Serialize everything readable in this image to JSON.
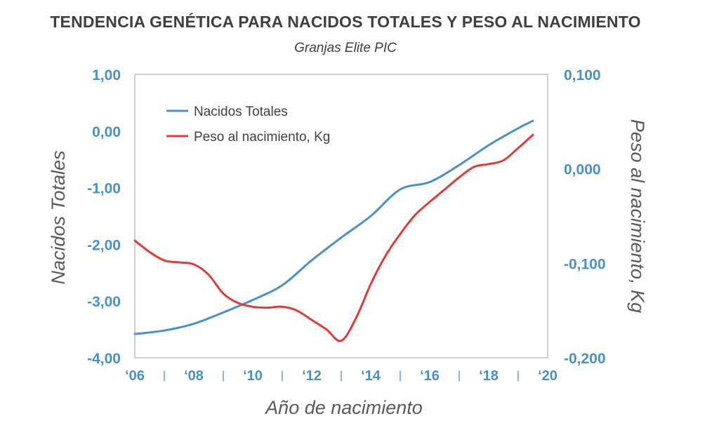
{
  "title": "TENDENCIA GENÉTICA PARA NACIDOS TOTALES Y PESO AL NACIMIENTO",
  "subtitle": "Granjas Elite PIC",
  "chart_data": {
    "type": "line",
    "xlabel": "Año de nacimiento",
    "ylabel_left": "Nacidos Totales",
    "ylabel_right": "Peso al nacimiento, Kg",
    "xlim": [
      2006,
      2020
    ],
    "x_ticks": [
      {
        "value": 2006,
        "label": "‘06"
      },
      {
        "value": 2008,
        "label": "‘08"
      },
      {
        "value": 2010,
        "label": "‘10"
      },
      {
        "value": 2012,
        "label": "‘12"
      },
      {
        "value": 2014,
        "label": "‘14"
      },
      {
        "value": 2016,
        "label": "‘16"
      },
      {
        "value": 2018,
        "label": "‘18"
      },
      {
        "value": 2020,
        "label": "‘20"
      }
    ],
    "x_separator": "|",
    "ylim_left": [
      -4,
      1
    ],
    "yticks_left": [
      "1,00",
      "0,00",
      "-1,00",
      "-2,00",
      "-3,00",
      "-4,00"
    ],
    "ylim_right": [
      -0.2,
      0.1
    ],
    "yticks_right": [
      "0,100",
      "0,000",
      "-0,100",
      "-0,200"
    ],
    "grid": false,
    "legend_position": "top-left",
    "series": [
      {
        "name": "Nacidos Totales",
        "axis": "left",
        "color": "#4a90c8",
        "x": [
          2006,
          2007,
          2008,
          2009,
          2010,
          2011,
          2012,
          2013,
          2014,
          2015,
          2016,
          2017,
          2018,
          2019,
          2019.5
        ],
        "y": [
          -3.58,
          -3.52,
          -3.4,
          -3.2,
          -2.98,
          -2.72,
          -2.28,
          -1.88,
          -1.5,
          -1.03,
          -0.9,
          -0.6,
          -0.25,
          0.05,
          0.18
        ]
      },
      {
        "name": "Peso al nacimiento, Kg",
        "axis": "right",
        "color": "#e53935",
        "x": [
          2006,
          2006.5,
          2007,
          2007.5,
          2008,
          2008.5,
          2009,
          2009.5,
          2010,
          2010.5,
          2011,
          2011.5,
          2012,
          2012.5,
          2013,
          2013.5,
          2014,
          2014.5,
          2015,
          2015.5,
          2016,
          2016.5,
          2017,
          2017.5,
          2018,
          2018.5,
          2019,
          2019.5
        ],
        "y": [
          -0.076,
          -0.088,
          -0.097,
          -0.099,
          -0.101,
          -0.112,
          -0.132,
          -0.142,
          -0.146,
          -0.147,
          -0.146,
          -0.15,
          -0.16,
          -0.17,
          -0.182,
          -0.158,
          -0.122,
          -0.092,
          -0.069,
          -0.049,
          -0.035,
          -0.022,
          -0.009,
          0.002,
          0.005,
          0.009,
          0.022,
          0.036
        ]
      }
    ]
  }
}
